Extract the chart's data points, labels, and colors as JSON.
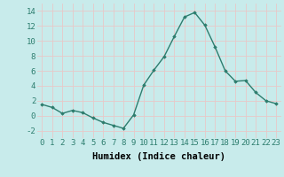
{
  "x": [
    0,
    1,
    2,
    3,
    4,
    5,
    6,
    7,
    8,
    9,
    10,
    11,
    12,
    13,
    14,
    15,
    16,
    17,
    18,
    19,
    20,
    21,
    22,
    23
  ],
  "y": [
    1.5,
    1.1,
    0.3,
    0.7,
    0.4,
    -0.3,
    -0.9,
    -1.3,
    -1.7,
    0.1,
    4.1,
    6.1,
    7.9,
    10.6,
    13.2,
    13.8,
    12.1,
    9.2,
    6.0,
    4.6,
    4.7,
    3.1,
    2.0,
    1.6
  ],
  "line_color": "#2d7d6e",
  "marker": "D",
  "marker_size": 1.8,
  "linewidth": 1.0,
  "xlabel": "Humidex (Indice chaleur)",
  "xlim": [
    -0.5,
    23.5
  ],
  "ylim": [
    -3,
    15
  ],
  "yticks": [
    -2,
    0,
    2,
    4,
    6,
    8,
    10,
    12,
    14
  ],
  "xticks": [
    0,
    1,
    2,
    3,
    4,
    5,
    6,
    7,
    8,
    9,
    10,
    11,
    12,
    13,
    14,
    15,
    16,
    17,
    18,
    19,
    20,
    21,
    22,
    23
  ],
  "xtick_labels": [
    "0",
    "1",
    "2",
    "3",
    "4",
    "5",
    "6",
    "7",
    "8",
    "9",
    "10",
    "11",
    "12",
    "13",
    "14",
    "15",
    "16",
    "17",
    "18",
    "19",
    "20",
    "21",
    "22",
    "23"
  ],
  "bg_color": "#c8ebeb",
  "grid_color": "#e8c8c8",
  "grid_linewidth": 0.6,
  "tick_fontsize": 6.5,
  "xlabel_fontsize": 7.5
}
